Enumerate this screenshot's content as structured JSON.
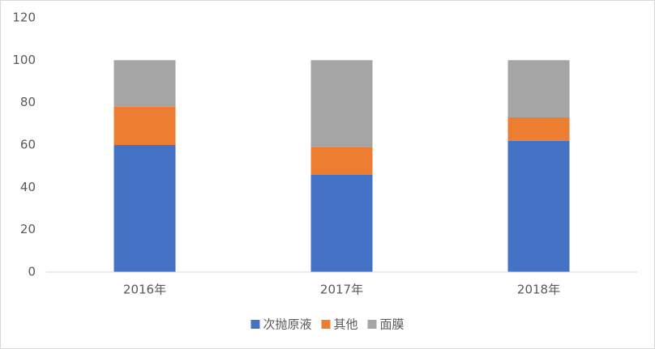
{
  "chart_data": {
    "type": "bar",
    "stacked": true,
    "categories": [
      "2016年",
      "2017年",
      "2018年"
    ],
    "series": [
      {
        "name": "次抛原液",
        "color": "#4472c4",
        "values": [
          60,
          46,
          62
        ]
      },
      {
        "name": "其他",
        "color": "#ed7d31",
        "values": [
          18,
          13,
          11
        ]
      },
      {
        "name": "面膜",
        "color": "#a5a5a5",
        "values": [
          22,
          41,
          27
        ]
      }
    ],
    "ylim": [
      0,
      120
    ],
    "yticks": [
      0,
      20,
      40,
      60,
      80,
      100,
      120
    ],
    "grid": false,
    "legend": "bottom"
  }
}
